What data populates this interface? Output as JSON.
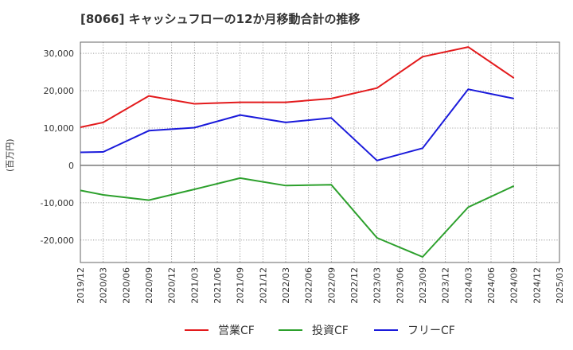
{
  "title": "[8066]  キャッシュフローの12か月移動合計の推移",
  "unit_label": "(百万円)",
  "chart_data": {
    "type": "line",
    "title": "[8066]  キャッシュフローの12か月移動合計の推移",
    "xlabel": "",
    "ylabel": "(百万円)",
    "x": [
      "2019/12",
      "2020/03",
      "2020/06",
      "2020/09",
      "2020/12",
      "2021/03",
      "2021/06",
      "2021/09",
      "2021/12",
      "2022/03",
      "2022/06",
      "2022/09",
      "2022/12",
      "2023/03",
      "2023/06",
      "2023/09",
      "2023/12",
      "2024/03",
      "2024/06",
      "2024/09",
      "2024/12",
      "2025/03"
    ],
    "ylim": [
      -26000,
      33000
    ],
    "yticks": [
      -20000,
      -10000,
      0,
      10000,
      20000,
      30000
    ],
    "ytick_labels": [
      "-20,000",
      "-10,000",
      "0",
      "10,000",
      "20,000",
      "30,000"
    ],
    "grid": true,
    "legend_position": "bottom",
    "series": [
      {
        "name": "営業CF",
        "color": "#e31a1c",
        "values": [
          10200,
          11500,
          null,
          18600,
          null,
          16500,
          null,
          16900,
          null,
          16900,
          null,
          17900,
          null,
          20700,
          null,
          29100,
          null,
          31700,
          null,
          23400,
          null,
          null
        ]
      },
      {
        "name": "投資CF",
        "color": "#2ca02c",
        "values": [
          -6700,
          -7900,
          null,
          -9300,
          null,
          -6400,
          null,
          -3400,
          null,
          -5400,
          null,
          -5200,
          null,
          -19400,
          null,
          -24500,
          null,
          -11200,
          null,
          -5500,
          null,
          null
        ]
      },
      {
        "name": "フリーCF",
        "color": "#1a1adb",
        "values": [
          3500,
          3600,
          null,
          9300,
          null,
          10100,
          null,
          13500,
          null,
          11500,
          null,
          12700,
          null,
          1300,
          null,
          4600,
          null,
          20400,
          null,
          17900,
          null,
          null
        ]
      }
    ]
  }
}
